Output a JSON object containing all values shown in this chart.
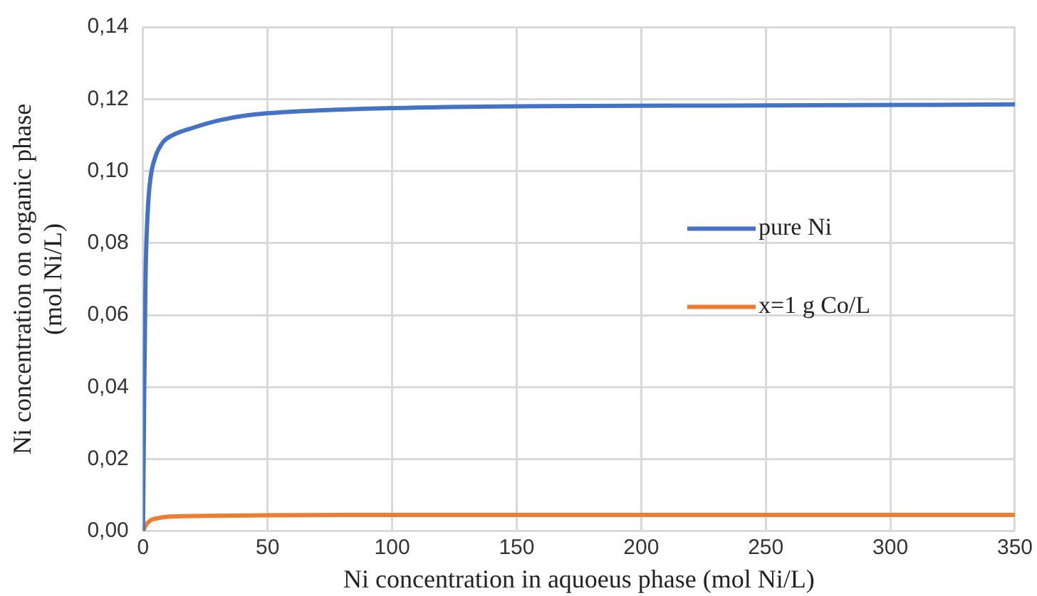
{
  "chart_data": {
    "type": "line",
    "xlabel": "Ni concentration in aquoeus phase (mol Ni/L)",
    "ylabel": "Ni concentration on organic phase\n(mol Ni/L)",
    "xlim": [
      0,
      350
    ],
    "xticks": [
      0,
      50,
      100,
      150,
      200,
      250,
      300,
      350
    ],
    "ylim": [
      0,
      0.14
    ],
    "yticks": [
      {
        "value": 0,
        "label": "0,00"
      },
      {
        "value": 0.02,
        "label": "0,02"
      },
      {
        "value": 0.04,
        "label": "0,04"
      },
      {
        "value": 0.06,
        "label": "0,06"
      },
      {
        "value": 0.08,
        "label": "0,08"
      },
      {
        "value": 0.1,
        "label": "0,10"
      },
      {
        "value": 0.12,
        "label": "0,12"
      },
      {
        "value": 0.14,
        "label": "0,14"
      }
    ],
    "grid": true,
    "legend": "right",
    "marker": "none",
    "line_style": "solid",
    "series": [
      {
        "name": "pure Ni",
        "color": "#4472c4",
        "x": [
          0,
          0.5,
          1,
          2,
          3,
          5,
          8,
          12,
          20,
          30,
          42,
          60,
          100,
          150,
          250,
          350
        ],
        "values": [
          0,
          0.04,
          0.07,
          0.09,
          0.098,
          0.104,
          0.108,
          0.11,
          0.112,
          0.114,
          0.1155,
          0.1165,
          0.1175,
          0.118,
          0.1182,
          0.1185
        ]
      },
      {
        "name": "x=1 g Co/L",
        "color": "#ed7d31",
        "x": [
          0,
          1,
          3,
          6,
          10,
          20,
          50,
          100,
          200,
          350
        ],
        "values": [
          0,
          0.0015,
          0.003,
          0.0036,
          0.004,
          0.0042,
          0.0044,
          0.0045,
          0.0045,
          0.0045
        ]
      }
    ]
  }
}
